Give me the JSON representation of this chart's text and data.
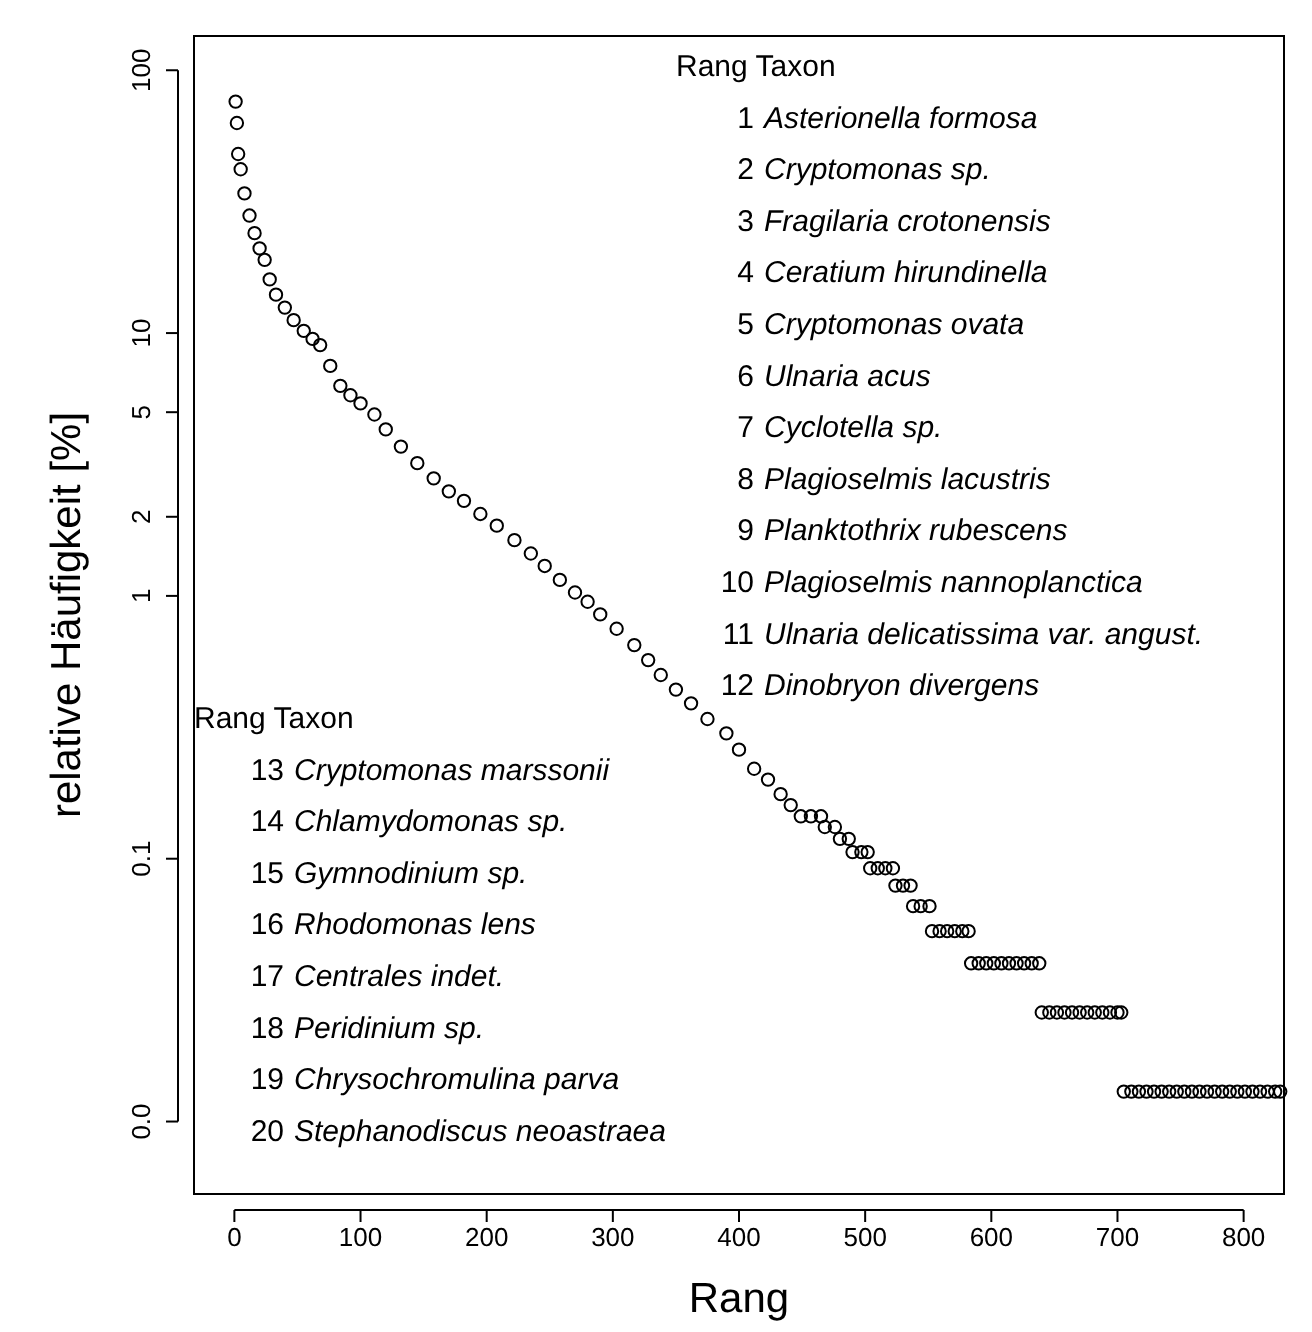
{
  "chart_data": {
    "type": "scatter",
    "xlabel": "Rang",
    "ylabel": "relative Häufigkeit [%]",
    "log": "y",
    "marker": "circle",
    "xlim": [
      -32,
      832
    ],
    "ylim": [
      0.0053,
      135
    ],
    "xticks": [
      0,
      100,
      200,
      300,
      400,
      500,
      600,
      700,
      800
    ],
    "yticks": [
      {
        "value": 0.01,
        "label": "0.0"
      },
      0.1,
      1,
      2,
      5,
      10,
      100
    ],
    "series": [
      {
        "color": "#000000",
        "x": [
          1,
          2,
          3,
          5,
          8,
          12,
          16,
          20,
          24,
          28,
          33,
          40,
          47,
          55,
          62,
          68,
          76,
          84,
          92,
          100,
          111,
          120,
          132,
          145,
          158,
          170,
          182,
          195,
          208,
          222,
          235,
          246,
          258,
          270,
          280,
          290,
          303,
          317,
          328,
          338,
          350,
          362,
          375,
          390,
          400,
          412,
          423,
          433,
          441,
          449,
          457,
          465,
          468,
          476,
          480,
          487,
          490,
          497,
          502,
          504,
          510,
          516,
          522,
          524,
          530,
          536,
          538,
          544,
          551,
          553,
          559,
          565,
          571,
          577,
          582,
          584,
          590,
          596,
          602,
          608,
          614,
          620,
          626,
          632,
          638,
          640,
          646,
          652,
          658,
          664,
          670,
          676,
          682,
          688,
          694,
          700,
          703,
          705,
          711,
          717,
          723,
          729,
          735,
          741,
          747,
          753,
          759,
          765,
          771,
          777,
          783,
          789,
          795,
          801,
          807,
          813,
          819,
          825,
          829
        ],
        "values": [
          76,
          63,
          48,
          42,
          34,
          28,
          24,
          21,
          19,
          16,
          14,
          12.5,
          11.2,
          10.2,
          9.5,
          9.0,
          7.5,
          6.3,
          5.8,
          5.4,
          4.9,
          4.3,
          3.7,
          3.2,
          2.8,
          2.5,
          2.3,
          2.05,
          1.85,
          1.63,
          1.45,
          1.3,
          1.15,
          1.03,
          0.95,
          0.85,
          0.75,
          0.65,
          0.57,
          0.5,
          0.44,
          0.39,
          0.34,
          0.3,
          0.26,
          0.22,
          0.2,
          0.176,
          0.16,
          0.145,
          0.145,
          0.145,
          0.132,
          0.132,
          0.119,
          0.119,
          0.106,
          0.106,
          0.106,
          0.092,
          0.092,
          0.092,
          0.092,
          0.079,
          0.079,
          0.079,
          0.066,
          0.066,
          0.066,
          0.053,
          0.053,
          0.053,
          0.053,
          0.053,
          0.053,
          0.04,
          0.04,
          0.04,
          0.04,
          0.04,
          0.04,
          0.04,
          0.04,
          0.04,
          0.04,
          0.026,
          0.026,
          0.026,
          0.026,
          0.026,
          0.026,
          0.026,
          0.026,
          0.026,
          0.026,
          0.026,
          0.026,
          0.013,
          0.013,
          0.013,
          0.013,
          0.013,
          0.013,
          0.013,
          0.013,
          0.013,
          0.013,
          0.013,
          0.013,
          0.013,
          0.013,
          0.013,
          0.013,
          0.013,
          0.013,
          0.013,
          0.013,
          0.013,
          0.013
        ]
      }
    ],
    "annotations": [
      "Rang Taxon\n1 Asterionella formosa\n2 Cryptomonas sp.\n3 Fragilaria crotonensis\n4 Ceratium hirundinella\n5 Cryptomonas ovata\n6 Ulnaria acus\n7 Cyclotella sp.\n8 Plagioselmis lacustris\n9 Planktothrix rubescens\n10 Plagioselmis nannoplanctica\n11 Ulnaria delicatissima var. angust.\n12 Dinobryon divergens",
      "Rang Taxon\n13 Cryptomonas marssonii\n14 Chlamydomonas sp.\n15 Gymnodinium sp.\n16 Rhodomonas lens\n17 Centrales indet.\n18 Peridinium sp.\n19 Chrysochromulina parva\n20 Stephanodiscus neoastraea"
    ]
  }
}
